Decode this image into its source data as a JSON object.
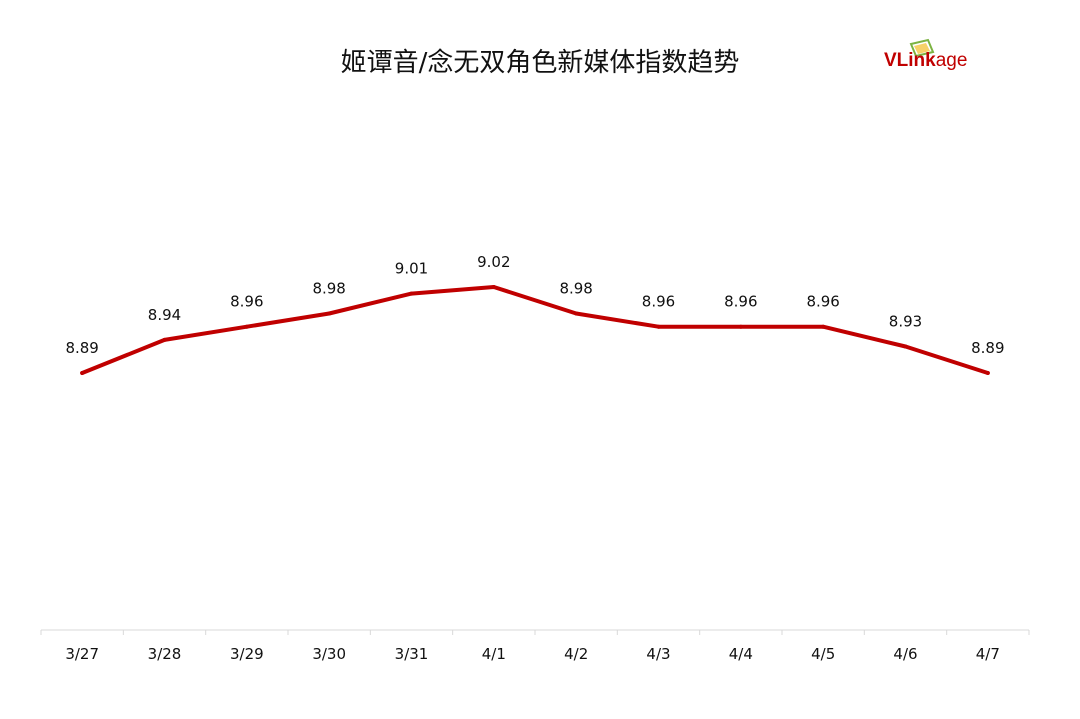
{
  "title": "姬谭音/念无双角色新媒体指数趋势",
  "logo": {
    "v": "VL",
    "ink": "ink",
    "age": "age",
    "brand_color": "#c00000"
  },
  "chart_data": {
    "type": "line",
    "title": "姬谭音/念无双角色新媒体指数趋势",
    "xlabel": "",
    "ylabel": "",
    "categories": [
      "3/27",
      "3/28",
      "3/29",
      "3/30",
      "3/31",
      "4/1",
      "4/2",
      "4/3",
      "4/4",
      "4/5",
      "4/6",
      "4/7"
    ],
    "series": [
      {
        "values": [
          8.89,
          8.94,
          8.96,
          8.98,
          9.01,
          9.02,
          8.98,
          8.96,
          8.96,
          8.96,
          8.93,
          8.89
        ],
        "color": "#c00000",
        "data_labels": true
      }
    ],
    "grid": false,
    "y_axis_visible": false
  }
}
